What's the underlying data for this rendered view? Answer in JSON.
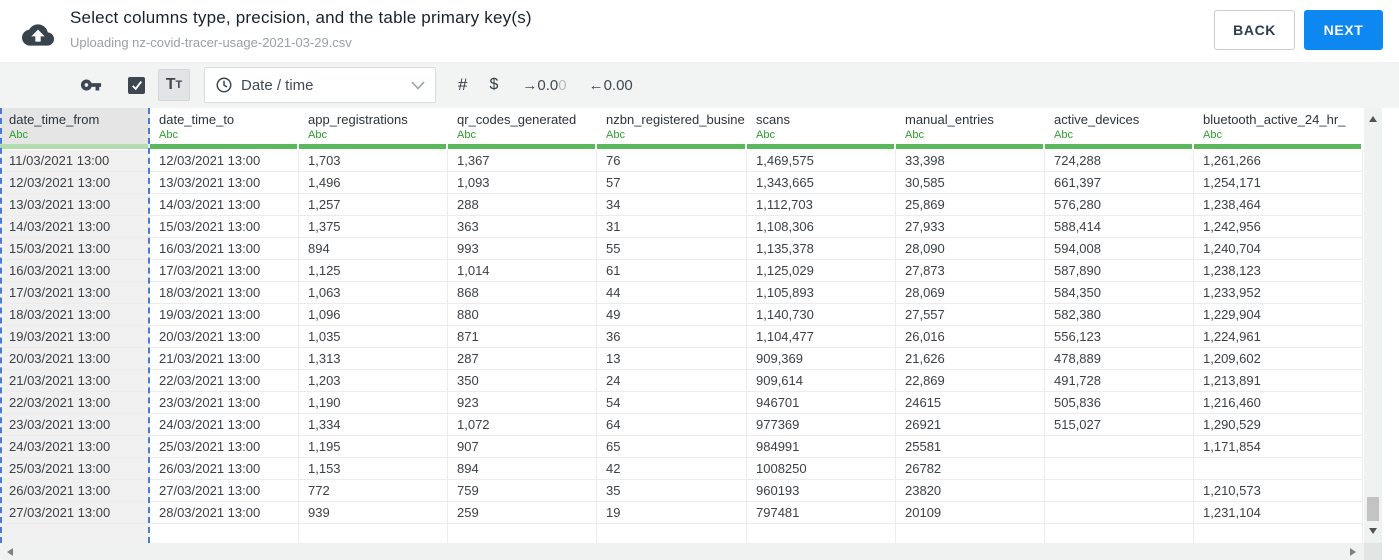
{
  "header": {
    "title": "Select columns type, precision, and the table primary key(s)",
    "subtitle": "Uploading nz-covid-tracer-usage-2021-03-29.csv",
    "back_label": "BACK",
    "next_label": "NEXT"
  },
  "toolbar": {
    "key_icon": "key-icon",
    "checkbox_checked": true,
    "text_case": {
      "first": "T",
      "second": "T"
    },
    "type_dropdown": {
      "icon": "clock-icon",
      "value": "Date / time",
      "chevron": "chevron-down-icon"
    },
    "number_label": "#",
    "currency_label": "$",
    "precision_add": {
      "main": "→0.0",
      "faded": "0"
    },
    "precision_remove": "←0.00"
  },
  "colors": {
    "accent_blue": "#0d87f1",
    "strip_green": "#5cb85c",
    "abc_green": "#2fa02f",
    "selection_dash_blue": "#4a7ad2",
    "icon_slate": "#3e4751"
  },
  "table": {
    "type_label": "Abc",
    "columns": [
      {
        "name": "date_time_from",
        "type_label": "Abc",
        "selected": true
      },
      {
        "name": "date_time_to",
        "type_label": "Abc",
        "selected": false
      },
      {
        "name": "app_registrations",
        "type_label": "Abc",
        "selected": false
      },
      {
        "name": "qr_codes_generated",
        "type_label": "Abc",
        "selected": false
      },
      {
        "name": "nzbn_registered_busine",
        "type_label": "Abc",
        "selected": false
      },
      {
        "name": "scans",
        "type_label": "Abc",
        "selected": false
      },
      {
        "name": "manual_entries",
        "type_label": "Abc",
        "selected": false
      },
      {
        "name": "active_devices",
        "type_label": "Abc",
        "selected": false
      },
      {
        "name": "bluetooth_active_24_hr_",
        "type_label": "Abc",
        "selected": false
      }
    ],
    "rows": [
      [
        "11/03/2021 13:00",
        "12/03/2021 13:00",
        "1,703",
        "1,367",
        "76",
        "1,469,575",
        "33,398",
        "724,288",
        "1,261,266"
      ],
      [
        "12/03/2021 13:00",
        "13/03/2021 13:00",
        "1,496",
        "1,093",
        "57",
        "1,343,665",
        "30,585",
        "661,397",
        "1,254,171"
      ],
      [
        "13/03/2021 13:00",
        "14/03/2021 13:00",
        "1,257",
        "288",
        "34",
        "1,112,703",
        "25,869",
        "576,280",
        "1,238,464"
      ],
      [
        "14/03/2021 13:00",
        "15/03/2021 13:00",
        "1,375",
        "363",
        "31",
        "1,108,306",
        "27,933",
        "588,414",
        "1,242,956"
      ],
      [
        "15/03/2021 13:00",
        "16/03/2021 13:00",
        "894",
        "993",
        "55",
        "1,135,378",
        "28,090",
        "594,008",
        "1,240,704"
      ],
      [
        "16/03/2021 13:00",
        "17/03/2021 13:00",
        "1,125",
        "1,014",
        "61",
        "1,125,029",
        "27,873",
        "587,890",
        "1,238,123"
      ],
      [
        "17/03/2021 13:00",
        "18/03/2021 13:00",
        "1,063",
        "868",
        "44",
        "1,105,893",
        "28,069",
        "584,350",
        "1,233,952"
      ],
      [
        "18/03/2021 13:00",
        "19/03/2021 13:00",
        "1,096",
        "880",
        "49",
        "1,140,730",
        "27,557",
        "582,380",
        "1,229,904"
      ],
      [
        "19/03/2021 13:00",
        "20/03/2021 13:00",
        "1,035",
        "871",
        "36",
        "1,104,477",
        "26,016",
        "556,123",
        "1,224,961"
      ],
      [
        "20/03/2021 13:00",
        "21/03/2021 13:00",
        "1,313",
        "287",
        "13",
        "909,369",
        "21,626",
        "478,889",
        "1,209,602"
      ],
      [
        "21/03/2021 13:00",
        "22/03/2021 13:00",
        "1,203",
        "350",
        "24",
        "909,614",
        "22,869",
        "491,728",
        "1,213,891"
      ],
      [
        "22/03/2021 13:00",
        "23/03/2021 13:00",
        "1,190",
        "923",
        "54",
        "946701",
        "24615",
        "505,836",
        "1,216,460"
      ],
      [
        "23/03/2021 13:00",
        "24/03/2021 13:00",
        "1,334",
        "1,072",
        "64",
        "977369",
        "26921",
        "515,027",
        "1,290,529"
      ],
      [
        "24/03/2021 13:00",
        "25/03/2021 13:00",
        "1,195",
        "907",
        "65",
        "984991",
        "25581",
        "",
        "1,171,854"
      ],
      [
        "25/03/2021 13:00",
        "26/03/2021 13:00",
        "1,153",
        "894",
        "42",
        "1008250",
        "26782",
        "",
        ""
      ],
      [
        "26/03/2021 13:00",
        "27/03/2021 13:00",
        "772",
        "759",
        "35",
        "960193",
        "23820",
        "",
        "1,210,573"
      ],
      [
        "27/03/2021 13:00",
        "28/03/2021 13:00",
        "939",
        "259",
        "19",
        "797481",
        "20109",
        "",
        "1,231,104"
      ]
    ]
  }
}
